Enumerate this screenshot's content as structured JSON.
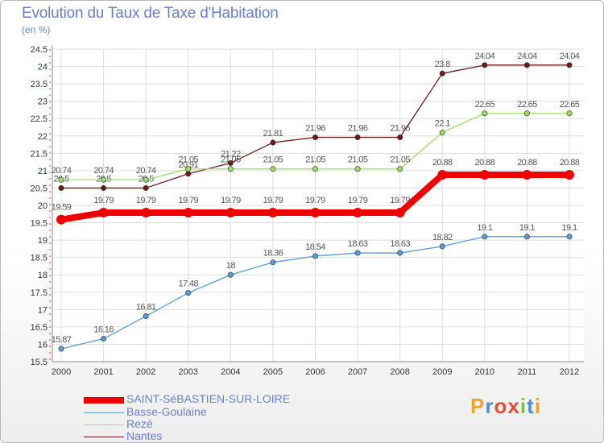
{
  "title": "Evolution du Taux de Taxe d'Habitation",
  "subtitle": "(en %)",
  "logo": {
    "letters": [
      "P",
      "r",
      "o",
      "x",
      "i",
      "t",
      "i"
    ],
    "colors": [
      "#f0a22e",
      "#4a90d9",
      "#e84c3d",
      "#e84c3d",
      "#7cc242",
      "#4a90d9",
      "#f0a22e"
    ]
  },
  "chart_data": {
    "type": "line",
    "x": [
      "2000",
      "2001",
      "2002",
      "2003",
      "2004",
      "2005",
      "2006",
      "2007",
      "2008",
      "2009",
      "2010",
      "2011",
      "2012"
    ],
    "yticks": [
      "15.5",
      "16",
      "16.5",
      "17",
      "17.5",
      "18",
      "18.5",
      "19",
      "19.5",
      "20",
      "20.5",
      "21",
      "21.5",
      "22",
      "22.5",
      "23",
      "23.5",
      "24",
      "24.5"
    ],
    "ylim": [
      15.5,
      24.5
    ],
    "grid": true,
    "legend_position": "bottom-left",
    "series": [
      {
        "name": "Nantes",
        "color": "#6b1a1a",
        "values": [
          20.5,
          20.5,
          20.5,
          20.91,
          21.22,
          21.81,
          21.96,
          21.96,
          21.96,
          23.8,
          24.04,
          24.04,
          24.04
        ],
        "labels": [
          "20.5",
          "20.5",
          "20.5",
          "20.91",
          "21.22",
          "21.81",
          "21.96",
          "21.96",
          "21.96",
          "23.8",
          "24.04",
          "24.04",
          "24.04"
        ]
      },
      {
        "name": "Rezé",
        "color": "#99dd66",
        "values": [
          20.74,
          20.74,
          20.74,
          21.05,
          21.05,
          21.05,
          21.05,
          21.05,
          21.05,
          22.1,
          22.65,
          22.65,
          22.65
        ],
        "labels": [
          "20.74",
          "20.74",
          "20.74",
          "21.05",
          "21.05",
          "21.05",
          "21.05",
          "21.05",
          "21.05",
          "22.1",
          "22.65",
          "22.65",
          "22.65"
        ]
      },
      {
        "name": "Basse-Goulaine",
        "color": "#5b9bd0",
        "values": [
          15.87,
          16.16,
          16.81,
          17.48,
          18,
          18.36,
          18.54,
          18.63,
          18.63,
          18.82,
          19.1,
          19.1,
          19.1
        ],
        "labels": [
          "15.87",
          "16.16",
          "16.81",
          "17.48",
          "18",
          "18.36",
          "18.54",
          "18.63",
          "18.63",
          "18.82",
          "19.1",
          "19.1",
          "19.1"
        ]
      },
      {
        "name": "SAINT-SéBASTIEN-SUR-LOIRE",
        "color": "#ee0000",
        "values": [
          19.59,
          19.79,
          19.79,
          19.79,
          19.79,
          19.79,
          19.79,
          19.79,
          19.79,
          20.88,
          20.88,
          20.88,
          20.88
        ],
        "labels": [
          "19.59",
          "19.79",
          "19.79",
          "19.79",
          "19.79",
          "19.79",
          "19.79",
          "19.79",
          "19.79",
          "20.88",
          "20.88",
          "20.88",
          "20.88"
        ]
      }
    ],
    "legend": [
      "SAINT-SéBASTIEN-SUR-LOIRE",
      "Basse-Goulaine",
      "Rezé",
      "Nantes"
    ]
  }
}
